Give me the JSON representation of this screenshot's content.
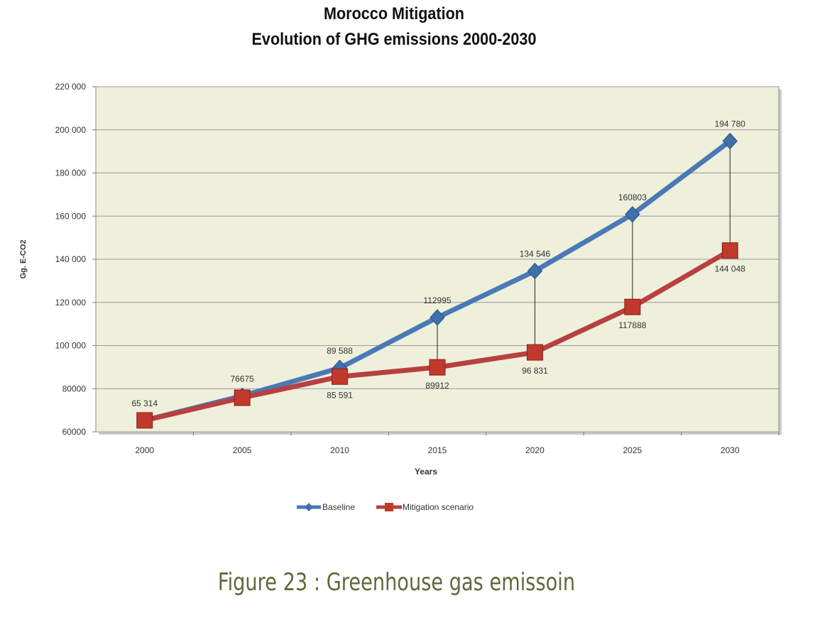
{
  "chart_data": {
    "type": "line",
    "title": "Morocco Mitigation",
    "subtitle": "Evolution of GHG emissions 2000-2030",
    "xlabel": "Years",
    "ylabel": "Gg. E-CO2",
    "ylim": [
      60000,
      220000
    ],
    "yticks": [
      "60000",
      "80000",
      "100 000",
      "120 000",
      "140 000",
      "160 000",
      "180 000",
      "200 000",
      "220 000"
    ],
    "categories": [
      "2000",
      "2005",
      "2010",
      "2015",
      "2020",
      "2025",
      "2030"
    ],
    "series": [
      {
        "name": "Baseline",
        "color": "#4a7ab5",
        "values": [
          65314,
          76675,
          89588,
          112995,
          134546,
          160803,
          194780
        ],
        "labels": [
          "65 314",
          "76675",
          "89 588",
          "112995",
          "134 546",
          "160803",
          "194 780"
        ]
      },
      {
        "name": "Mitigation scenario",
        "color": "#b84040",
        "values": [
          65314,
          75800,
          85591,
          89912,
          96831,
          117888,
          144048
        ],
        "labels": [
          "",
          "",
          "85 591",
          "89912",
          "96 831",
          "117888",
          "144 048"
        ]
      }
    ],
    "legend": "bottom",
    "grid": true
  },
  "caption": "Figure 23 : Greenhouse gas emissoin"
}
